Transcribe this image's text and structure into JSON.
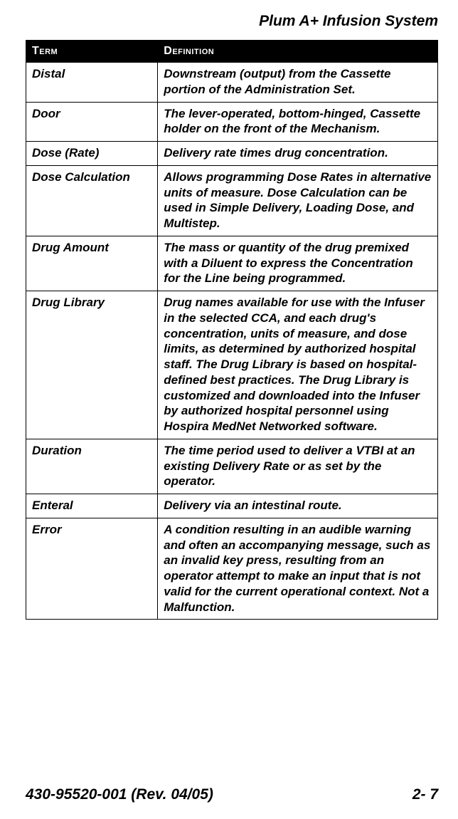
{
  "document": {
    "title": "Plum A+ Infusion System",
    "footer_left": "430-95520-001 (Rev. 04/05)",
    "footer_right": "2- 7"
  },
  "table": {
    "header_term": "Term",
    "header_def": "Definition",
    "col_widths": {
      "term": "32%",
      "def": "68%"
    },
    "header_bg": "#000000",
    "header_fg": "#ffffff",
    "border_color": "#000000",
    "body_font_style": "italic",
    "body_font_weight": "bold",
    "body_font_size_pt": 13,
    "rows": [
      {
        "term": "Distal",
        "def": "Downstream (output) from the Cassette portion of the Administration Set."
      },
      {
        "term": "Door",
        "def": "The lever-operated, bottom-hinged, Cassette holder on the front of the Mechanism."
      },
      {
        "term": "Dose (Rate)",
        "def": "Delivery rate times drug concentration."
      },
      {
        "term": "Dose Calculation",
        "def": "Allows programming Dose Rates in alternative units of measure. Dose Calculation can be used in Simple Delivery, Loading Dose, and Multistep."
      },
      {
        "term": "Drug Amount",
        "def": "The mass or quantity of the drug premixed with a Diluent to express the Concentration for the Line being programmed."
      },
      {
        "term": "Drug Library",
        "def": "Drug names available for use with the Infuser in the selected CCA, and each drug's concentration, units of measure, and dose limits, as determined by authorized hospital staff. The Drug Library is based on hospital-defined best practices. The Drug Library is customized and downloaded into the Infuser by authorized hospital personnel using Hospira MedNet Networked software."
      },
      {
        "term": "Duration",
        "def": "The time period used to deliver a VTBI at an existing Delivery Rate or as set by the operator."
      },
      {
        "term": "Enteral",
        "def": "Delivery via an intestinal route."
      },
      {
        "term": "Error",
        "def": "A condition resulting in an audible warning and often an accompanying message, such as an invalid key press, resulting from an operator attempt to make an input that is not valid for the current operational context. Not a Malfunction."
      }
    ]
  }
}
